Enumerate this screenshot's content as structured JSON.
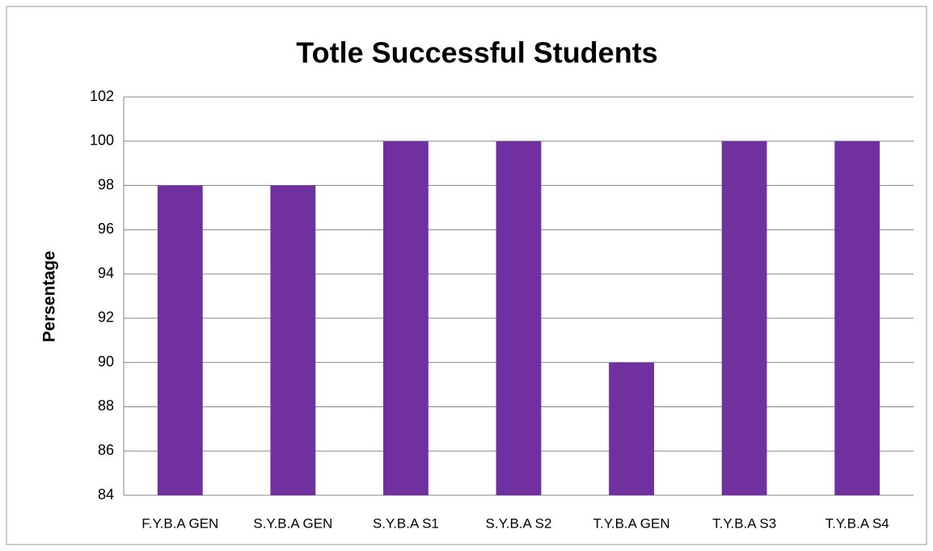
{
  "chart_data": {
    "type": "bar",
    "title": "Totle Successful Students",
    "y_label": "Persentage",
    "categories": [
      "F.Y.B.A GEN",
      "S.Y.B.A GEN",
      "S.Y.B.A S1",
      "S.Y.B.A S2",
      "T.Y.B.A GEN",
      "T.Y.B.A S3",
      "T.Y.B.A S4"
    ],
    "values": [
      98,
      98,
      100,
      100,
      90,
      100,
      100
    ],
    "color": "#7030a0",
    "ylim": [
      84,
      102
    ],
    "yticks": [
      84,
      86,
      88,
      90,
      92,
      94,
      96,
      98,
      100,
      102
    ],
    "grid": true
  }
}
